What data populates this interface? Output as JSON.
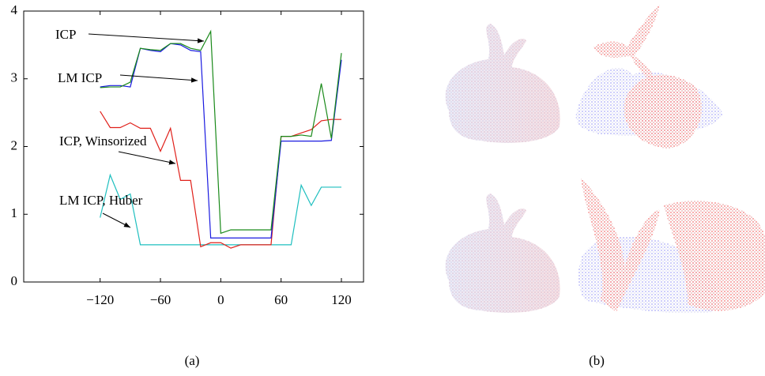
{
  "chart_data": {
    "type": "line",
    "x": [
      -120,
      -110,
      -100,
      -90,
      -80,
      -70,
      -60,
      -50,
      -40,
      -30,
      -20,
      -10,
      0,
      10,
      20,
      30,
      40,
      50,
      60,
      70,
      80,
      90,
      100,
      110,
      120
    ],
    "series": [
      {
        "name": "LM ICP, Huber",
        "color": "#1fbfbf",
        "values": [
          0.95,
          1.58,
          1.22,
          1.3,
          0.55,
          0.55,
          0.55,
          0.55,
          0.55,
          0.55,
          0.55,
          0.55,
          0.55,
          0.55,
          0.55,
          0.55,
          0.55,
          0.55,
          0.55,
          0.55,
          1.43,
          1.13,
          1.4,
          1.4,
          1.4
        ]
      },
      {
        "name": "ICP, Winsorized",
        "color": "#e0201a",
        "values": [
          2.52,
          2.28,
          2.28,
          2.35,
          2.27,
          2.27,
          1.93,
          2.27,
          1.5,
          1.5,
          0.52,
          0.58,
          0.58,
          0.5,
          0.55,
          0.55,
          0.55,
          0.55,
          2.15,
          2.15,
          2.2,
          2.25,
          2.38,
          2.4,
          2.4
        ]
      },
      {
        "name": "LM ICP",
        "color": "#1a1ae0",
        "values": [
          2.88,
          2.9,
          2.9,
          2.88,
          3.45,
          3.42,
          3.4,
          3.52,
          3.5,
          3.42,
          3.4,
          0.65,
          0.65,
          0.65,
          0.65,
          0.65,
          0.65,
          0.65,
          2.08,
          2.08,
          2.08,
          2.08,
          2.08,
          2.09,
          3.28
        ]
      },
      {
        "name": "ICP",
        "color": "#1a8a1a",
        "values": [
          2.87,
          2.88,
          2.88,
          2.95,
          3.45,
          3.43,
          3.42,
          3.52,
          3.52,
          3.45,
          3.42,
          3.7,
          0.72,
          0.77,
          0.77,
          0.77,
          0.77,
          0.77,
          2.15,
          2.15,
          2.17,
          2.15,
          2.93,
          2.12,
          3.38
        ]
      }
    ],
    "xlim": [
      -196,
      142
    ],
    "ylim": [
      0,
      4
    ],
    "xticks": [
      {
        "value": -120,
        "label": "−120"
      },
      {
        "value": -60,
        "label": "−60"
      },
      0,
      60,
      120
    ],
    "yticks": [
      0,
      1,
      2,
      3,
      4
    ],
    "annotations": [
      "ICP",
      "LM ICP",
      "ICP, Winsorized",
      "LM ICP, Huber"
    ],
    "captions": [
      "(a)",
      "(b)"
    ]
  }
}
